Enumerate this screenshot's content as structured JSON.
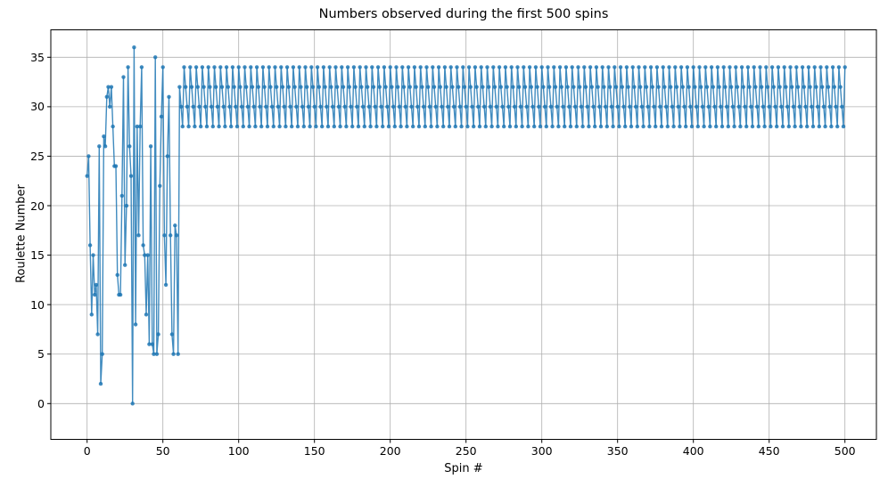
{
  "figure": {
    "title": "Numbers observed during the first 500 spins",
    "xlabel": "Spin #",
    "ylabel": "Roulette Number"
  },
  "axes": {
    "x_ticks": [
      0,
      50,
      100,
      150,
      200,
      250,
      300,
      350,
      400,
      450,
      500
    ],
    "y_ticks": [
      0,
      5,
      10,
      15,
      20,
      25,
      30,
      35
    ],
    "grid": true
  },
  "style": {
    "line_color": "#1f77b4",
    "line_opacity": 0.85,
    "grid_color": "#b0b0b0",
    "frame_color": "#000000",
    "text_color": "#000000"
  },
  "chart_data": {
    "type": "line",
    "title": "Numbers observed during the first 500 spins",
    "xlabel": "Spin #",
    "ylabel": "Roulette Number",
    "marker": "o",
    "legend": "none",
    "grid": "on",
    "x_tick_range": [
      0,
      500
    ],
    "y_tick_range": [
      0,
      35
    ],
    "x_start_spin": 0,
    "note": "Chaotic random values for spins 0-60 (series_head), then the generator falls into a repeating period-4 cycle of 32,30,28,34 from spin 61 through spin 500.",
    "series_head": [
      23,
      25,
      16,
      9,
      15,
      11,
      12,
      7,
      26,
      2,
      5,
      27,
      26,
      31,
      32,
      30,
      32,
      28,
      24,
      24,
      13,
      11,
      11,
      21,
      33,
      14,
      20,
      34,
      26,
      23,
      0,
      36,
      8,
      28,
      17,
      28,
      34,
      16,
      15,
      9,
      15,
      6,
      26,
      6,
      5,
      35,
      5,
      7,
      22,
      29,
      34,
      17,
      12,
      25,
      31,
      17,
      7,
      5,
      18,
      17,
      5
    ],
    "cycle": {
      "start_spin": 61,
      "end_spin": 500,
      "values": [
        32,
        30,
        28,
        34
      ]
    }
  }
}
